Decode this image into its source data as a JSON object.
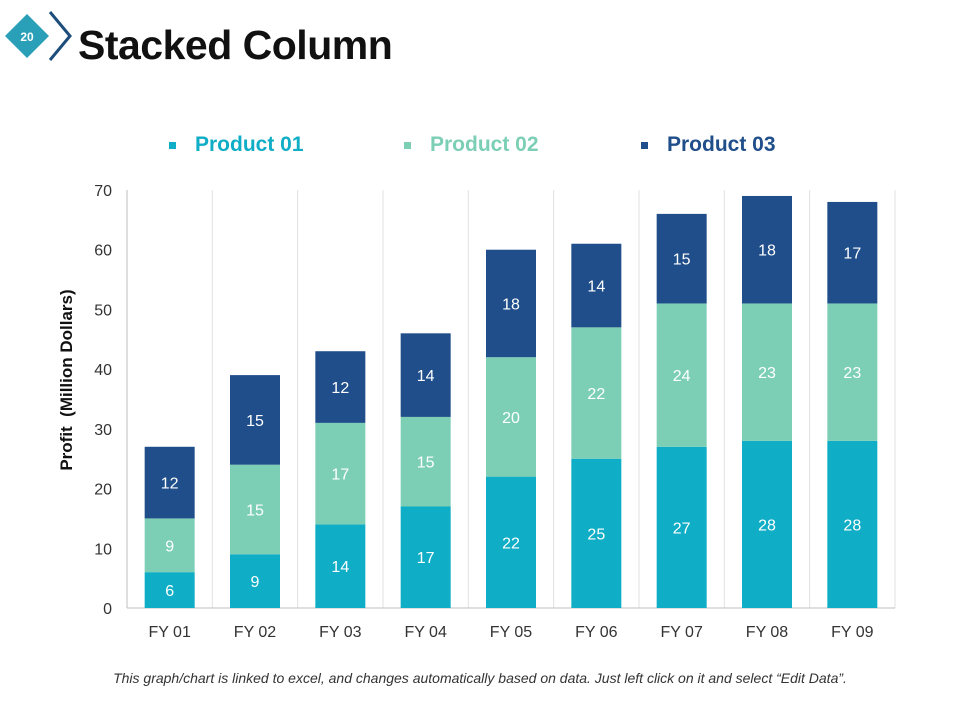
{
  "slide": {
    "number": "20",
    "title": "Stacked Column"
  },
  "colors": {
    "badge_bg": "#2a9fb8",
    "badge_text": "#ffffff",
    "chevron": "#1e4d7b",
    "product_01": "#0fadc6",
    "product_02": "#7ccfb5",
    "product_03": "#1f4e8a",
    "grid": "#e2e2e2",
    "axis": "#bfbfbf",
    "label_text": "#ffffff",
    "tick_text": "#333333"
  },
  "chart_data": {
    "type": "bar",
    "stacked": true,
    "title": "",
    "xlabel": "",
    "ylabel": "Profit  (Million Dollars)",
    "ylim": [
      0,
      70
    ],
    "yticks": [
      0,
      10,
      20,
      30,
      40,
      50,
      60,
      70
    ],
    "categories": [
      "FY 01",
      "FY 02",
      "FY 03",
      "FY 04",
      "FY 05",
      "FY 06",
      "FY 07",
      "FY 08",
      "FY 09"
    ],
    "series": [
      {
        "name": "Product 01",
        "values": [
          6,
          9,
          14,
          17,
          22,
          25,
          27,
          28,
          28
        ]
      },
      {
        "name": "Product 02",
        "values": [
          9,
          15,
          17,
          15,
          20,
          22,
          24,
          23,
          23
        ]
      },
      {
        "name": "Product 03",
        "values": [
          12,
          15,
          12,
          14,
          18,
          14,
          15,
          18,
          17
        ]
      }
    ],
    "legend_position": "top"
  },
  "footnote": "This graph/chart is linked to excel, and changes automatically based on data. Just left click on it and select “Edit Data”."
}
